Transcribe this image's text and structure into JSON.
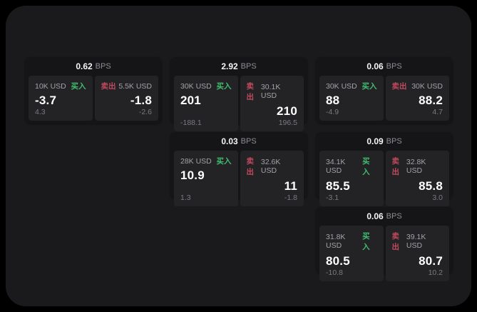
{
  "colors": {
    "outer_background": "#000000",
    "panel_background": "#1a1a1c",
    "card_background": "#151517",
    "tile_background": "#232325",
    "buy_green": "#40bd71",
    "sell_red": "#c04a5e"
  },
  "cards": [
    {
      "grid": {
        "row": 1,
        "col": 1
      },
      "bps_value": "0.62",
      "bps_unit": "BPS",
      "buy": {
        "amount": "10K USD",
        "label": "买入",
        "price": "-3.7",
        "delta": "4.3"
      },
      "sell": {
        "label": "卖出",
        "amount": "5.5K USD",
        "price": "-1.8",
        "delta": "-2.6"
      }
    },
    {
      "grid": {
        "row": 1,
        "col": 2
      },
      "bps_value": "2.92",
      "bps_unit": "BPS",
      "buy": {
        "amount": "30K USD",
        "label": "买入",
        "price": "201",
        "delta": "-188.1"
      },
      "sell": {
        "label": "卖出",
        "amount": "30.1K USD",
        "price": "210",
        "delta": "196.5"
      }
    },
    {
      "grid": {
        "row": 1,
        "col": 3
      },
      "bps_value": "0.06",
      "bps_unit": "BPS",
      "buy": {
        "amount": "30K USD",
        "label": "买入",
        "price": "88",
        "delta": "-4.9"
      },
      "sell": {
        "label": "卖出",
        "amount": "30K USD",
        "price": "88.2",
        "delta": "4.7"
      }
    },
    {
      "grid": {
        "row": 2,
        "col": 2
      },
      "bps_value": "0.03",
      "bps_unit": "BPS",
      "buy": {
        "amount": "28K USD",
        "label": "买入",
        "price": "10.9",
        "delta": "1.3"
      },
      "sell": {
        "label": "卖出",
        "amount": "32.6K USD",
        "price": "11",
        "delta": "-1.8"
      }
    },
    {
      "grid": {
        "row": 2,
        "col": 3
      },
      "bps_value": "0.09",
      "bps_unit": "BPS",
      "buy": {
        "amount": "34.1K USD",
        "label": "买入",
        "price": "85.5",
        "delta": "-3.1"
      },
      "sell": {
        "label": "卖出",
        "amount": "32.8K USD",
        "price": "85.8",
        "delta": "3.0"
      }
    },
    {
      "grid": {
        "row": 3,
        "col": 3
      },
      "bps_value": "0.06",
      "bps_unit": "BPS",
      "buy": {
        "amount": "31.8K USD",
        "label": "买入",
        "price": "80.5",
        "delta": "-10.8"
      },
      "sell": {
        "label": "卖出",
        "amount": "39.1K USD",
        "price": "80.7",
        "delta": "10.2"
      }
    }
  ]
}
